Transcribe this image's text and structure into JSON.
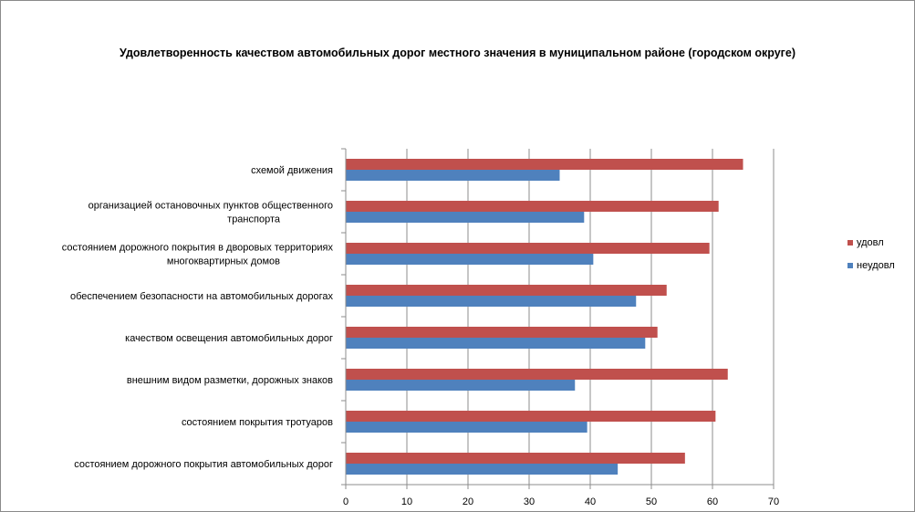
{
  "chart_data": {
    "type": "bar",
    "orientation": "horizontal",
    "title": "Удовлетворенность качеством автомобильных дорог местного значения в муниципальном районе (городском округе)",
    "xlabel": "",
    "ylabel": "",
    "xlim": [
      0,
      70
    ],
    "ticks": [
      0,
      10,
      20,
      30,
      40,
      50,
      60,
      70
    ],
    "grid": true,
    "legend": "right",
    "categories": [
      [
        "схемой движения"
      ],
      [
        "организацией остановочных пунктов общественного",
        "транспорта"
      ],
      [
        "состоянием дорожного покрытия в дворовых территориях",
        "многоквартирных домов"
      ],
      [
        "обеспечением  безопасности на автомобильных дорогах"
      ],
      [
        "качеством освещения  автомобильных дорог"
      ],
      [
        "внешним  видом разметки, дорожных знаков"
      ],
      [
        "состоянием покрытия тротуаров"
      ],
      [
        "состоянием дорожного покрытия автомобильных дорог"
      ]
    ],
    "series": [
      {
        "name": "удовл",
        "color": "#c0504d",
        "values": [
          65,
          61,
          59.5,
          52.5,
          51,
          62.5,
          60.5,
          55.5
        ]
      },
      {
        "name": "неудовл",
        "color": "#4f81bd",
        "values": [
          35,
          39,
          40.5,
          47.5,
          49,
          37.5,
          39.5,
          44.5
        ]
      }
    ]
  }
}
